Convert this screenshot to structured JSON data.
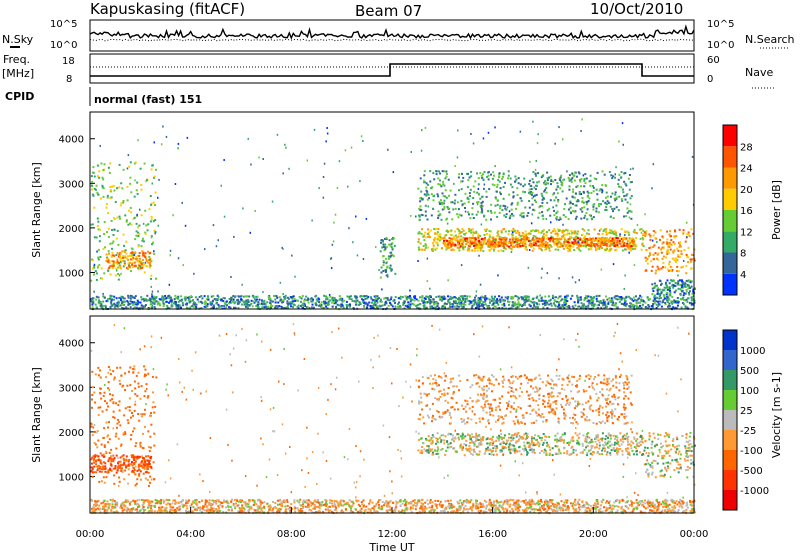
{
  "header": {
    "station": "Kapuskasing (fitACF)",
    "beam": "Beam 07",
    "date": "10/Oct/2010"
  },
  "noise_panel": {
    "left_label": "N.Sky",
    "right_label": "N.Search",
    "left_ticks": [
      "10^5",
      "10^0"
    ],
    "right_ticks": [
      "10^5",
      "10^0"
    ]
  },
  "freq_panel": {
    "left_label_1": "Freq.",
    "left_label_2": "[MHz]",
    "right_label": "Nave",
    "left_ticks": [
      "18",
      "8"
    ],
    "right_ticks": [
      "60",
      "0"
    ]
  },
  "cpid": {
    "label": "CPID",
    "value": "normal (fast) 151"
  },
  "colors": {
    "power_scale": [
      "#0033ff",
      "#336699",
      "#33aa66",
      "#66cc33",
      "#ffcc00",
      "#ff9900",
      "#ff5500",
      "#ff0000"
    ],
    "velocity_scale": [
      "#0033cc",
      "#3366cc",
      "#339966",
      "#66cc33",
      "#bbbbbb",
      "#ff9933",
      "#ff6600",
      "#ff3300",
      "#ee0000"
    ]
  },
  "chart_data": [
    {
      "type": "heatmap",
      "name": "power",
      "ylabel": "Slant Range [km]",
      "ylim": [
        180,
        4600
      ],
      "yticks": [
        "1000",
        "2000",
        "3000",
        "4000"
      ],
      "xlim": [
        "00:00",
        "24:00"
      ],
      "colorbar_label": "Power [dB]",
      "colorbar_ticks": [
        "4",
        "8",
        "12",
        "16",
        "20",
        "24",
        "28"
      ],
      "regions": [
        {
          "t0": 0.0,
          "t1": 2.6,
          "r0": 800,
          "r1": 3500,
          "level": 12
        },
        {
          "t0": 0.6,
          "t1": 2.4,
          "r0": 1100,
          "r1": 1500,
          "level": 20
        },
        {
          "t0": 11.5,
          "t1": 12.1,
          "r0": 900,
          "r1": 1800,
          "level": 8
        },
        {
          "t0": 13.0,
          "t1": 22.0,
          "r0": 1500,
          "r1": 2000,
          "level": 16
        },
        {
          "t0": 14.0,
          "t1": 21.6,
          "r0": 1600,
          "r1": 1800,
          "level": 22
        },
        {
          "t0": 13.0,
          "t1": 21.5,
          "r0": 2200,
          "r1": 3300,
          "level": 8
        },
        {
          "t0": 22.0,
          "t1": 24.0,
          "r0": 1000,
          "r1": 2000,
          "level": 20
        },
        {
          "t0": 22.3,
          "t1": 24.0,
          "r0": 500,
          "r1": 850,
          "level": 6
        },
        {
          "t0": 0.0,
          "t1": 24.0,
          "r0": 200,
          "r1": 500,
          "level": 6
        }
      ]
    },
    {
      "type": "heatmap",
      "name": "velocity",
      "ylabel": "Slant Range [km]",
      "ylim": [
        180,
        4600
      ],
      "yticks": [
        "1000",
        "2000",
        "3000",
        "4000"
      ],
      "xlim": [
        "00:00",
        "24:00"
      ],
      "xlabel": "Time UT",
      "xticks": [
        "00:00",
        "04:00",
        "08:00",
        "12:00",
        "16:00",
        "20:00",
        "00:00"
      ],
      "colorbar_label": "Velocity [m s-1]",
      "colorbar_ticks": [
        "1000",
        "500",
        "100",
        "25",
        "-25",
        "-100",
        "-500",
        "-1000"
      ],
      "regions": [
        {
          "t0": 0.0,
          "t1": 2.6,
          "r0": 800,
          "r1": 3500,
          "v": -150
        },
        {
          "t0": 0.0,
          "t1": 2.4,
          "r0": 1100,
          "r1": 1500,
          "v": -300
        },
        {
          "t0": 13.0,
          "t1": 22.0,
          "r0": 1500,
          "r1": 2000,
          "v": 0
        },
        {
          "t0": 13.0,
          "t1": 21.5,
          "r0": 2200,
          "r1": 3300,
          "v": -80
        },
        {
          "t0": 22.0,
          "t1": 24.0,
          "r0": 1000,
          "r1": 2000,
          "v": 0
        },
        {
          "t0": 0.0,
          "t1": 24.0,
          "r0": 200,
          "r1": 500,
          "v": -50
        }
      ]
    }
  ]
}
